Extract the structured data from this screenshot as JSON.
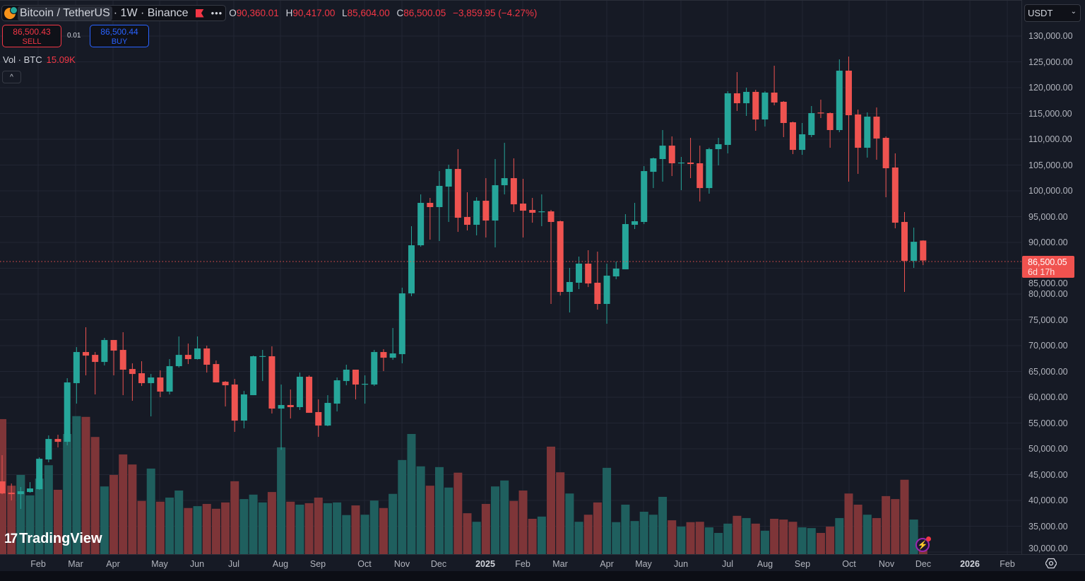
{
  "header": {
    "symbol": "Bitcoin / TetherUS",
    "meta": "· 1W · Binance",
    "more": "•••",
    "ohlc": {
      "o_label": "O",
      "o": "90,360.01",
      "h_label": "H",
      "h": "90,417.00",
      "l_label": "L",
      "l": "85,604.00",
      "c_label": "C",
      "c": "86,500.05",
      "change": "−3,859.95 (−4.27%)"
    }
  },
  "trade": {
    "sell_price": "86,500.43",
    "sell_label": "SELL",
    "quantity": "0.01",
    "buy_price": "86,500.44",
    "buy_label": "BUY"
  },
  "volume_legend": {
    "label": "Vol · BTC",
    "value": "15.09K"
  },
  "collapse_label": "^",
  "currency": {
    "selected": "USDT",
    "chevron": "⌄"
  },
  "last_price": {
    "value": "86,500.05",
    "countdown": "6d 17h"
  },
  "price_axis": [
    "130,000.00",
    "125,000.00",
    "120,000.00",
    "115,000.00",
    "110,000.00",
    "105,000.00",
    "100,000.00",
    "95,000.00",
    "90,000.00",
    "85,000.00",
    "80,000.00",
    "75,000.00",
    "70,000.00",
    "65,000.00",
    "60,000.00",
    "55,000.00",
    "50,000.00",
    "45,000.00",
    "40,000.00",
    "35,000.00",
    "30,000.00"
  ],
  "time_axis": [
    {
      "label": "Feb"
    },
    {
      "label": "Mar"
    },
    {
      "label": "Apr"
    },
    {
      "label": "May"
    },
    {
      "label": "Jun"
    },
    {
      "label": "Jul"
    },
    {
      "label": "Aug"
    },
    {
      "label": "Sep"
    },
    {
      "label": "Oct"
    },
    {
      "label": "Nov"
    },
    {
      "label": "Dec"
    },
    {
      "label": "2025",
      "bold": true
    },
    {
      "label": "Feb"
    },
    {
      "label": "Mar"
    },
    {
      "label": "Apr"
    },
    {
      "label": "May"
    },
    {
      "label": "Jun"
    },
    {
      "label": "Jul"
    },
    {
      "label": "Aug"
    },
    {
      "label": "Sep"
    },
    {
      "label": "Oct"
    },
    {
      "label": "Nov"
    },
    {
      "label": "Dec"
    },
    {
      "label": "2026",
      "bold": true
    },
    {
      "label": "Feb"
    }
  ],
  "branding": {
    "logo_mark": "17",
    "logo_text": "TradingView"
  },
  "colors": {
    "up": "#26a69a",
    "down": "#ef5350",
    "vol_up": "#1f5f5e",
    "vol_down": "#7e3538",
    "grid": "#222633",
    "bg": "#161a25"
  },
  "chart_data": {
    "type": "candlestick",
    "interval": "1W",
    "columns": [
      "open",
      "high",
      "low",
      "close",
      "volume_k"
    ],
    "price_range": [
      30000,
      130000
    ],
    "last_price": 86500.05,
    "candles": [
      [
        43690,
        48760,
        41220,
        41360,
        363
      ],
      [
        41500,
        43280,
        39990,
        41220,
        184
      ],
      [
        41220,
        42600,
        38350,
        41770,
        213
      ],
      [
        41630,
        43550,
        41500,
        42320,
        158
      ],
      [
        42180,
        48350,
        42050,
        48070,
        203
      ],
      [
        47940,
        52600,
        47390,
        51910,
        239
      ],
      [
        51910,
        52730,
        50270,
        51360,
        173
      ],
      [
        51360,
        63690,
        50680,
        62870,
        323
      ],
      [
        62730,
        69720,
        58760,
        68760,
        371
      ],
      [
        68760,
        73560,
        64240,
        68070,
        369
      ],
      [
        68210,
        68760,
        60540,
        66840,
        315
      ],
      [
        66840,
        71500,
        66160,
        71090,
        182
      ],
      [
        71090,
        71090,
        64240,
        69040,
        213
      ],
      [
        69170,
        72600,
        60400,
        65340,
        268
      ],
      [
        65470,
        66570,
        59310,
        64510,
        241
      ],
      [
        64650,
        66980,
        62180,
        62730,
        143
      ],
      [
        62730,
        64510,
        56290,
        63830,
        230
      ],
      [
        63830,
        65200,
        60000,
        61090,
        141
      ],
      [
        61090,
        67390,
        60540,
        66020,
        152
      ],
      [
        66020,
        71780,
        65750,
        68210,
        171
      ],
      [
        68210,
        70400,
        66430,
        67390,
        124
      ],
      [
        67390,
        71780,
        67300,
        69450,
        129
      ],
      [
        69450,
        70000,
        64780,
        66300,
        135
      ],
      [
        66430,
        67120,
        62870,
        62870,
        122
      ],
      [
        63000,
        63140,
        58210,
        62320,
        139
      ],
      [
        62460,
        63550,
        53280,
        55470,
        196
      ],
      [
        55470,
        61220,
        53970,
        60540,
        148
      ],
      [
        60400,
        68070,
        60400,
        67940,
        160
      ],
      [
        67900,
        69170,
        63140,
        67980,
        139
      ],
      [
        67940,
        69860,
        56840,
        57800,
        167
      ],
      [
        57800,
        62460,
        49800,
        58490,
        287
      ],
      [
        58490,
        61500,
        55880,
        58080,
        141
      ],
      [
        58080,
        64780,
        57530,
        63970,
        133
      ],
      [
        63970,
        64230,
        56980,
        56980,
        137
      ],
      [
        57120,
        59580,
        52320,
        54510,
        152
      ],
      [
        54510,
        60400,
        54380,
        58900,
        137
      ],
      [
        58760,
        63830,
        57250,
        63280,
        139
      ],
      [
        63140,
        66300,
        62320,
        65340,
        105
      ],
      [
        65340,
        65340,
        59580,
        62460,
        131
      ],
      [
        62500,
        64240,
        58760,
        62600,
        106
      ],
      [
        62460,
        69170,
        62180,
        68760,
        144
      ],
      [
        68760,
        69310,
        65070,
        67660,
        124
      ],
      [
        67660,
        73420,
        67250,
        68490,
        162
      ],
      [
        68350,
        81230,
        66570,
        80130,
        253
      ],
      [
        80130,
        93150,
        79580,
        89450,
        323
      ],
      [
        89450,
        99310,
        89170,
        97670,
        236
      ],
      [
        97670,
        98630,
        90540,
        96850,
        184
      ],
      [
        96850,
        103830,
        90270,
        100960,
        234
      ],
      [
        100820,
        105070,
        93970,
        104240,
        179
      ],
      [
        104240,
        108080,
        92050,
        94790,
        219
      ],
      [
        94930,
        99720,
        92330,
        93420,
        110
      ],
      [
        93420,
        98760,
        91370,
        98080,
        87
      ],
      [
        98080,
        102460,
        90960,
        94240,
        135
      ],
      [
        94240,
        106160,
        89040,
        101090,
        182
      ],
      [
        101090,
        109310,
        99310,
        102460,
        198
      ],
      [
        102460,
        106300,
        95890,
        97390,
        143
      ],
      [
        97530,
        102330,
        90960,
        96160,
        171
      ],
      [
        96300,
        98630,
        93830,
        95750,
        95
      ],
      [
        95890,
        99310,
        93150,
        96020,
        101
      ],
      [
        96020,
        96300,
        78080,
        93970,
        289
      ],
      [
        94110,
        94240,
        79720,
        80410,
        220
      ],
      [
        80410,
        85070,
        76430,
        82330,
        163
      ],
      [
        82190,
        87260,
        80960,
        85890,
        87
      ],
      [
        85890,
        88490,
        81360,
        82050,
        106
      ],
      [
        82190,
        88220,
        76980,
        78080,
        139
      ],
      [
        78080,
        85890,
        74240,
        83560,
        232
      ],
      [
        83420,
        86300,
        82870,
        84930,
        86
      ],
      [
        84790,
        95480,
        84790,
        93560,
        133
      ],
      [
        93420,
        97670,
        92600,
        94110,
        89
      ],
      [
        93970,
        104790,
        93560,
        103830,
        114
      ],
      [
        103690,
        106440,
        100540,
        106300,
        106
      ],
      [
        106160,
        111780,
        101780,
        108760,
        154
      ],
      [
        108760,
        110550,
        102870,
        105340,
        91
      ],
      [
        105340,
        106570,
        100130,
        105480,
        74
      ],
      [
        105480,
        110270,
        102460,
        105200,
        86
      ],
      [
        105340,
        108760,
        97940,
        100540,
        87
      ],
      [
        100540,
        108350,
        99450,
        108080,
        72
      ],
      [
        108080,
        110270,
        104930,
        109040,
        57
      ],
      [
        108900,
        119310,
        107260,
        118900,
        82
      ],
      [
        118900,
        123010,
        115480,
        116980,
        103
      ],
      [
        116980,
        120000,
        114520,
        119180,
        97
      ],
      [
        119180,
        119590,
        111640,
        113830,
        82
      ],
      [
        113830,
        119310,
        112460,
        119040,
        63
      ],
      [
        119040,
        124250,
        116570,
        117120,
        95
      ],
      [
        117260,
        117400,
        110410,
        113150,
        93
      ],
      [
        113290,
        113420,
        107120,
        107940,
        87
      ],
      [
        107940,
        113150,
        106980,
        110960,
        72
      ],
      [
        110820,
        116440,
        110410,
        115070,
        70
      ],
      [
        115170,
        117670,
        114110,
        115030,
        57
      ],
      [
        115070,
        115200,
        108350,
        111780,
        74
      ],
      [
        111780,
        125480,
        111370,
        123290,
        97
      ],
      [
        123290,
        126030,
        101780,
        114660,
        163
      ],
      [
        114800,
        115750,
        103290,
        108350,
        133
      ],
      [
        108350,
        115200,
        106440,
        114380,
        106
      ],
      [
        114380,
        116160,
        106030,
        110140,
        97
      ],
      [
        110270,
        110550,
        98760,
        104380,
        156
      ],
      [
        104520,
        107260,
        92740,
        93830,
        148
      ],
      [
        93970,
        95890,
        80410,
        86430,
        200
      ],
      [
        86430,
        92870,
        85060,
        90130,
        93
      ],
      [
        90360.01,
        90417,
        85604,
        86500.05,
        15.09
      ]
    ]
  }
}
